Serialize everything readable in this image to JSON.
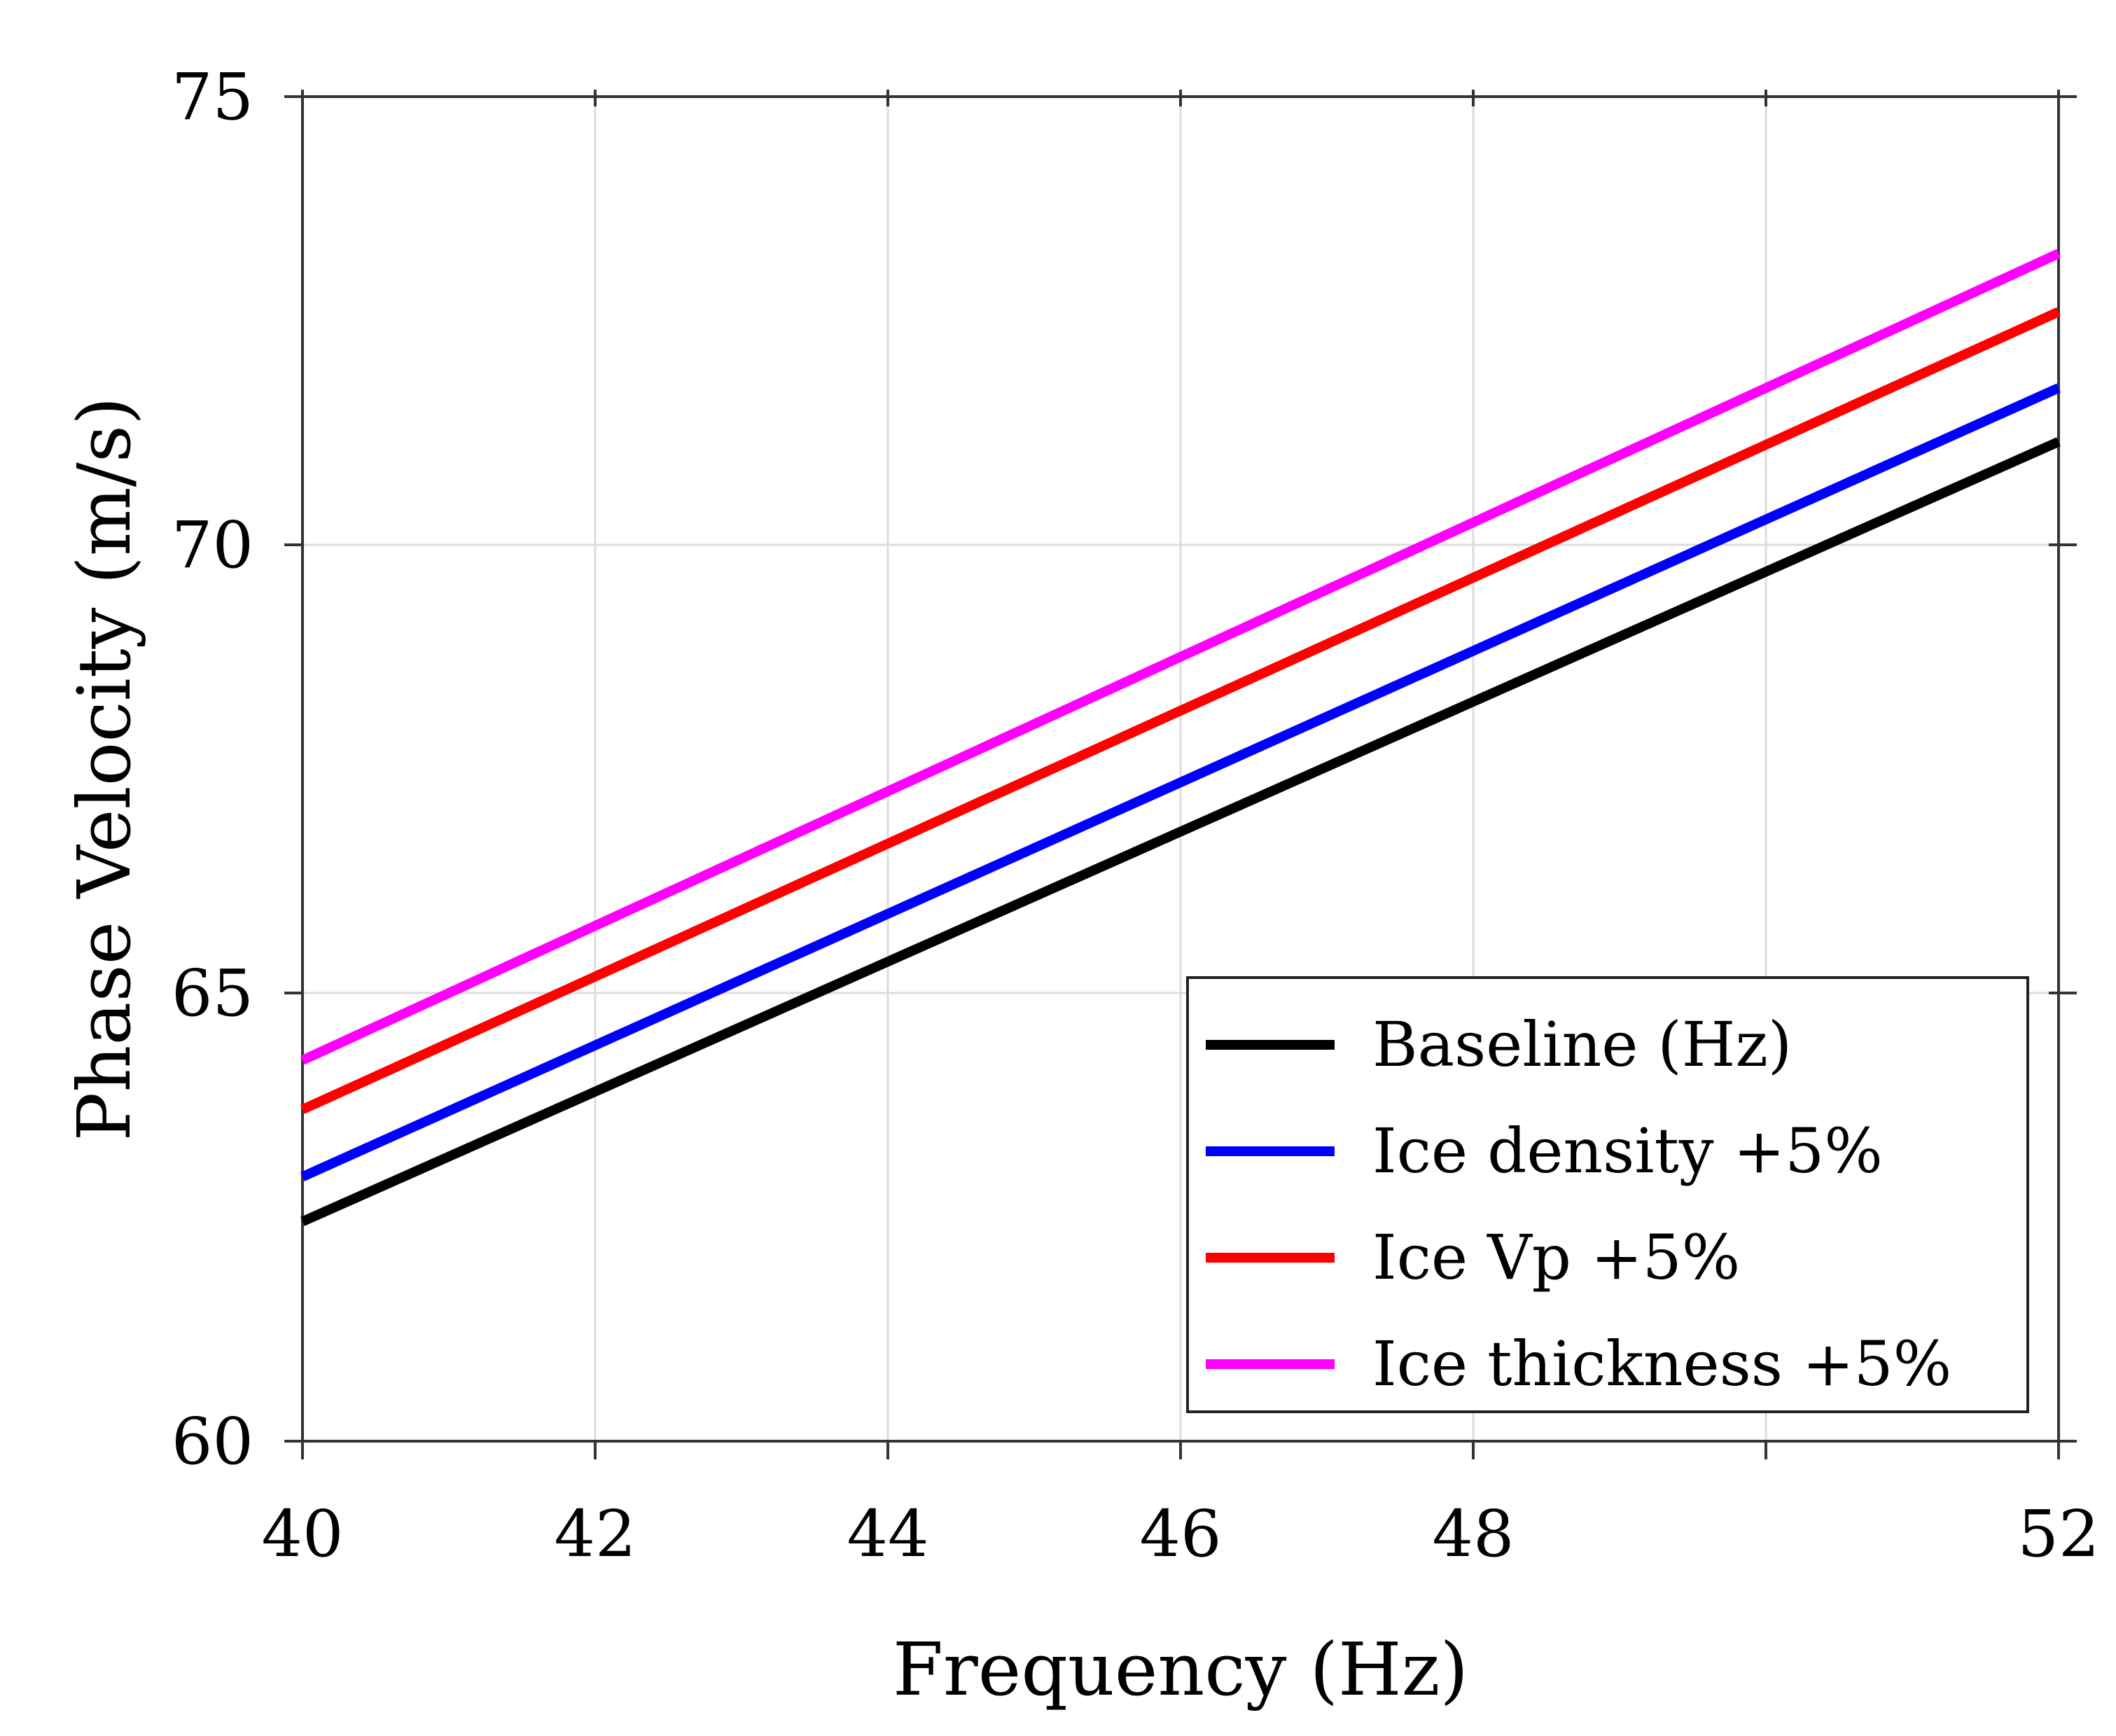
{
  "chart_data": {
    "type": "line",
    "title": "",
    "xlabel": "Frequency (Hz)",
    "ylabel": "Phase Velocity (m/s)",
    "xlim": [
      40,
      52
    ],
    "ylim": [
      60,
      75
    ],
    "xticks": [
      40,
      42,
      44,
      46,
      48,
      50,
      52
    ],
    "xtick_labels": [
      "40",
      "42",
      "44",
      "46",
      "48",
      "",
      "52"
    ],
    "yticks": [
      60,
      65,
      70,
      75
    ],
    "ytick_labels": [
      "60",
      "65",
      "70",
      "75"
    ],
    "grid": true,
    "legend_position": "bottom-right",
    "x": [
      40,
      52
    ],
    "series": [
      {
        "name": "Baseline (Hz)",
        "color": "#000000",
        "values": [
          62.45,
          71.15
        ]
      },
      {
        "name": "Ice density +5%",
        "color": "#0000ff",
        "values": [
          62.95,
          71.75
        ]
      },
      {
        "name": "Ice Vp +5%",
        "color": "#ff0000",
        "values": [
          63.7,
          72.6
        ]
      },
      {
        "name": "Ice thickness +5%",
        "color": "#ff00ff",
        "values": [
          64.25,
          73.25
        ]
      }
    ]
  }
}
